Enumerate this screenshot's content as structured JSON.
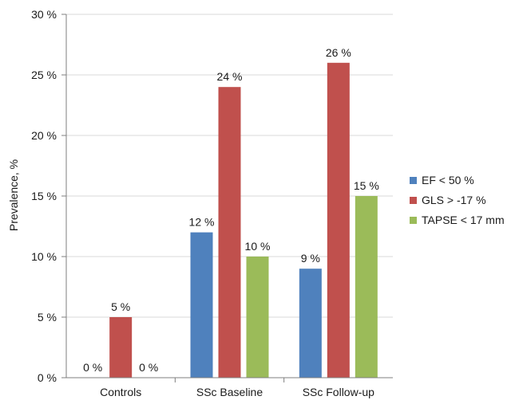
{
  "chart_data": {
    "type": "bar",
    "title": "",
    "xlabel": "",
    "ylabel": "Prevalence, %",
    "ylim": [
      0,
      30
    ],
    "yticks": [
      0,
      5,
      10,
      15,
      20,
      25,
      30
    ],
    "ytick_labels": [
      "0 %",
      "5 %",
      "10 %",
      "15 %",
      "20 %",
      "25 %",
      "30 %"
    ],
    "grid": true,
    "legend_position": "right",
    "categories": [
      "Controls",
      "SSc Baseline",
      "SSc Follow-up"
    ],
    "series": [
      {
        "name": "EF < 50 %",
        "color": "#4f81bd",
        "values": [
          0,
          12,
          9
        ],
        "labels": [
          "0 %",
          "12 %",
          "9 %"
        ]
      },
      {
        "name": "GLS > -17 %",
        "color": "#c0504d",
        "values": [
          5,
          24,
          26
        ],
        "labels": [
          "5 %",
          "24 %",
          "26 %"
        ]
      },
      {
        "name": "TAPSE < 17 mm",
        "color": "#9bbb59",
        "values": [
          0,
          10,
          15
        ],
        "labels": [
          "0 %",
          "10 %",
          "15 %"
        ]
      }
    ]
  }
}
